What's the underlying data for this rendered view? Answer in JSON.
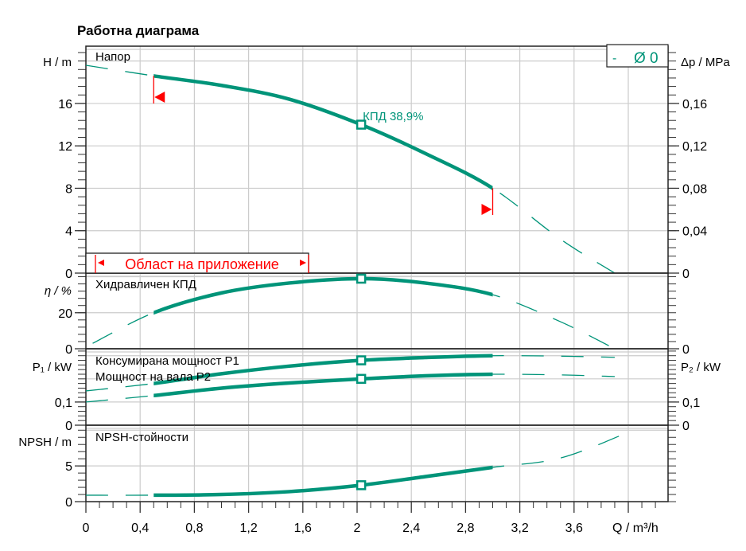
{
  "chart_data": {
    "type": "line",
    "title": "Работна диаграма",
    "xlabel": "Q / m³/h",
    "xlim": [
      0,
      4.3
    ],
    "xticks": [
      "0",
      "0,4",
      "0,8",
      "1,2",
      "1,6",
      "2",
      "2,4",
      "2,8",
      "3,2",
      "3,6"
    ],
    "xtick_values": [
      0,
      0.4,
      0.8,
      1.2,
      1.6,
      2,
      2.4,
      2.8,
      3.2,
      3.6
    ],
    "legend": {
      "dash": "-",
      "label": "Ø 0",
      "placement": "top-right"
    },
    "operating_range": {
      "label": "Област на приложение",
      "q_min": 0.5,
      "q_max": 3.0
    },
    "duty_point": {
      "q": 2.03,
      "label": "КПД  38,9%"
    },
    "panels": [
      {
        "name": "head",
        "ylabel": "H / m",
        "ylabel_right": "Δp / MPa",
        "ylim": [
          0,
          21.4
        ],
        "yticks": [
          {
            "v": 0,
            "t": "0"
          },
          {
            "v": 4,
            "t": "4"
          },
          {
            "v": 8,
            "t": "8"
          },
          {
            "v": 12,
            "t": "12"
          },
          {
            "v": 16,
            "t": "16"
          }
        ],
        "yticks_right": [
          {
            "v": 0,
            "t": "0"
          },
          {
            "v": 4,
            "t": "0,04"
          },
          {
            "v": 8,
            "t": "0,08"
          },
          {
            "v": 12,
            "t": "0,12"
          },
          {
            "v": 16,
            "t": "0,16"
          }
        ],
        "series": [
          {
            "name": "Напор",
            "x": [
              0,
              0.5,
              1,
              1.5,
              2.03,
              2.5,
              3,
              3.5,
              3.9
            ],
            "y": [
              19.6,
              18.6,
              17.7,
              16.4,
              14.0,
              11.3,
              8.0,
              3.2,
              0
            ]
          }
        ]
      },
      {
        "name": "efficiency",
        "ylabel": "η / %",
        "ylim": [
          0,
          42
        ],
        "yticks": [
          {
            "v": 0,
            "t": "0"
          },
          {
            "v": 20,
            "t": "20"
          }
        ],
        "yticks_right": [
          {
            "v": 0,
            "t": "0"
          }
        ],
        "series": [
          {
            "name": "Хидравличен КПД",
            "x": [
              0.05,
              0.5,
              1,
              1.5,
              2.03,
              2.5,
              3,
              3.5,
              3.9
            ],
            "y": [
              3,
              20,
              31,
              36.5,
              38.9,
              36.5,
              30,
              15,
              0
            ]
          }
        ]
      },
      {
        "name": "power",
        "ylabel": "P₁ / kW",
        "ylabel_right": "P₂ / kW",
        "ylim": [
          0,
          0.33
        ],
        "yticks": [
          {
            "v": 0,
            "t": "0"
          },
          {
            "v": 0.1,
            "t": "0,1"
          }
        ],
        "yticks_right": [
          {
            "v": 0,
            "t": "0"
          },
          {
            "v": 0.1,
            "t": "0,1"
          }
        ],
        "series": [
          {
            "name": "Консумирана мощност P1",
            "x": [
              0,
              0.5,
              1,
              1.5,
              2.03,
              2.5,
              3,
              3.5,
              3.9
            ],
            "y": [
              0.148,
              0.18,
              0.222,
              0.255,
              0.28,
              0.292,
              0.3,
              0.298,
              0.293
            ]
          },
          {
            "name": "Мощност на вала P2",
            "x": [
              0,
              0.5,
              1,
              1.5,
              2.03,
              2.5,
              3,
              3.5,
              3.9
            ],
            "y": [
              0.1,
              0.128,
              0.16,
              0.182,
              0.2,
              0.213,
              0.22,
              0.217,
              0.21
            ]
          }
        ]
      },
      {
        "name": "npsh",
        "ylabel": "NPSH  / m",
        "ylim": [
          0,
          10.7
        ],
        "yticks": [
          {
            "v": 0,
            "t": "0"
          },
          {
            "v": 5,
            "t": "5"
          }
        ],
        "series": [
          {
            "name": "NPSH-стойности",
            "x": [
              0,
              0.5,
              1,
              1.5,
              2.03,
              2.5,
              3,
              3.5,
              4.0
            ],
            "y": [
              0.9,
              0.9,
              1.0,
              1.4,
              2.3,
              3.5,
              4.8,
              6.1,
              9.7
            ]
          }
        ]
      }
    ]
  },
  "colors": {
    "curve": "#009479",
    "range": "#ff0000",
    "grid": "#cccccc"
  }
}
